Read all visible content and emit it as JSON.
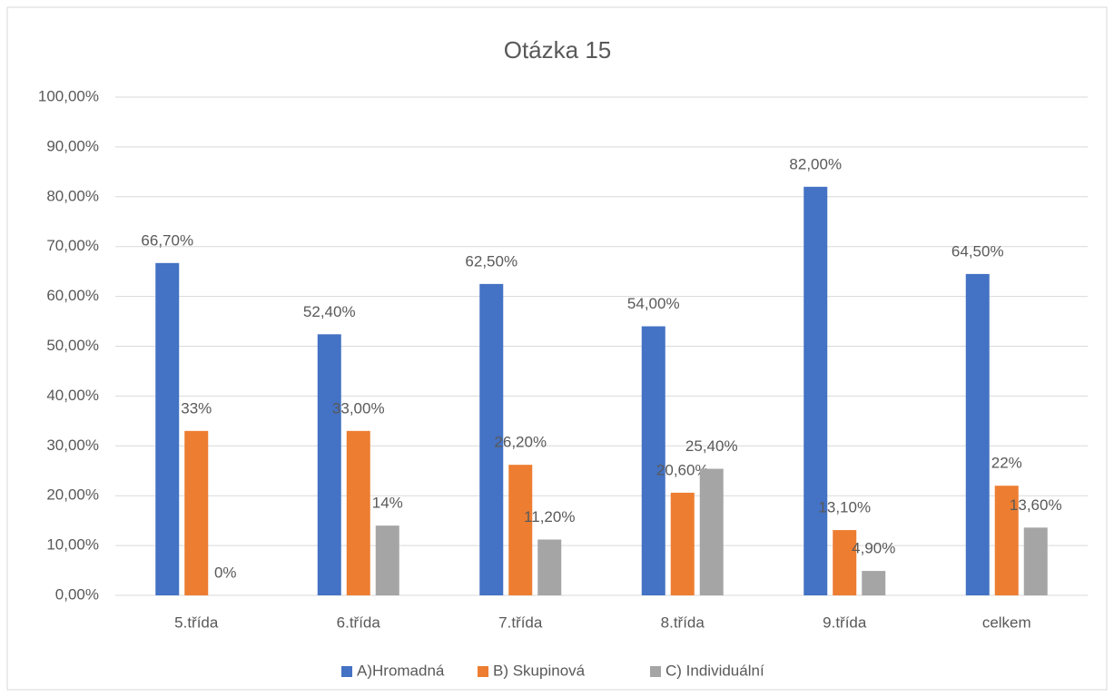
{
  "chart_data": {
    "type": "bar",
    "title": "Otázka 15",
    "categories": [
      "5.třída",
      "6.třída",
      "7.třída",
      "8.třída",
      "9.třída",
      "celkem"
    ],
    "series": [
      {
        "name": "A)Hromadná",
        "color": "#4472c4",
        "values": [
          66.7,
          52.4,
          62.5,
          54,
          82,
          64.5
        ],
        "value_labels": [
          "66,70%",
          "52,40%",
          "62,50%",
          "54,00%",
          "82,00%",
          "64,50%"
        ]
      },
      {
        "name": "B) Skupinová",
        "color": "#ed7d31",
        "values": [
          33,
          33,
          26.2,
          20.6,
          13.1,
          22
        ],
        "value_labels": [
          "33%",
          "33,00%",
          "26,20%",
          "20,60%",
          "13,10%",
          "22%"
        ]
      },
      {
        "name": "C) Individuální",
        "color": "#a5a5a5",
        "values": [
          0,
          14,
          11.2,
          25.4,
          4.9,
          13.6
        ],
        "value_labels": [
          "0%",
          "14%",
          "11,20%",
          "25,40%",
          "4,90%",
          "13,60%"
        ]
      }
    ],
    "ylim": [
      0,
      100
    ],
    "yticks": [
      {
        "value": 0,
        "label": "0,00%"
      },
      {
        "value": 10,
        "label": "10,00%"
      },
      {
        "value": 20,
        "label": "20,00%"
      },
      {
        "value": 30,
        "label": "30,00%"
      },
      {
        "value": 40,
        "label": "40,00%"
      },
      {
        "value": 50,
        "label": "50,00%"
      },
      {
        "value": 60,
        "label": "60,00%"
      },
      {
        "value": 70,
        "label": "70,00%"
      },
      {
        "value": 80,
        "label": "80,00%"
      },
      {
        "value": 90,
        "label": "90,00%"
      },
      {
        "value": 100,
        "label": "100,00%"
      }
    ],
    "grid": true,
    "legend": "bottom"
  }
}
